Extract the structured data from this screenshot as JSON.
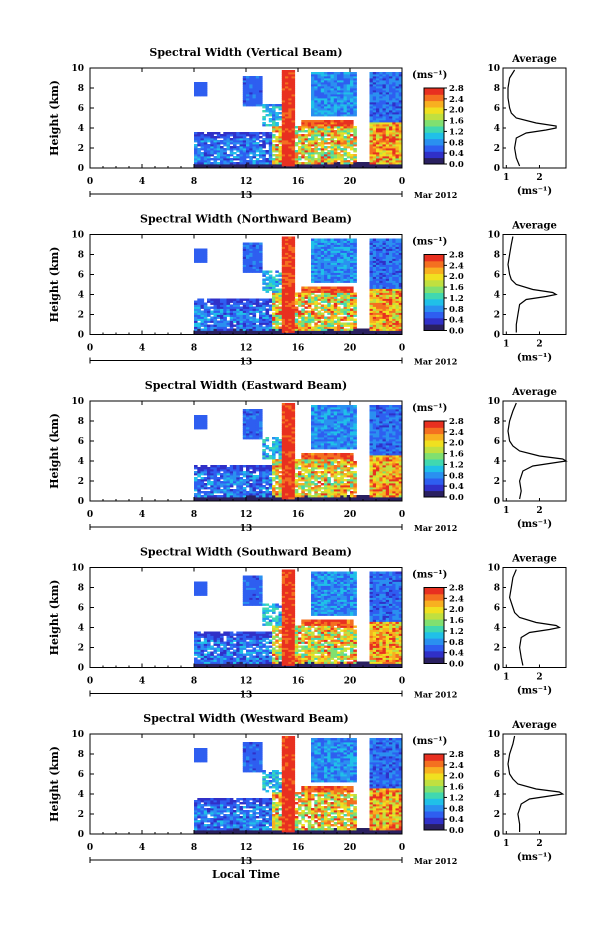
{
  "figure": {
    "xlabel": "Local Time",
    "date_label": "Mar 2012",
    "day_label": "13",
    "average_title": "Average",
    "height_label": "Height (km)",
    "unit_label": "(ms⁻¹)"
  },
  "colorscale": [
    "#2a2060",
    "#3030c8",
    "#2e5ef0",
    "#2a90f0",
    "#20c0e8",
    "#40d8b0",
    "#80e070",
    "#c0e040",
    "#f0e020",
    "#f8b020",
    "#f47020",
    "#e83020"
  ],
  "chart_data": [
    {
      "type": "heatmap",
      "title": "Spectral Width (Vertical Beam)",
      "ylabel": "Height (km)",
      "xlim": [
        0,
        24
      ],
      "ylim": [
        0,
        10
      ],
      "x_ticks": [
        "0",
        "4",
        "8",
        "12",
        "16",
        "20",
        "0"
      ],
      "y_ticks": [
        "0",
        "2",
        "4",
        "6",
        "8",
        "10"
      ],
      "colorbar": {
        "label": "(ms⁻¹)",
        "range": [
          0,
          2.8
        ],
        "ticks": [
          "0.0",
          "0.4",
          "0.8",
          "1.2",
          "1.6",
          "2.0",
          "2.4",
          "2.8"
        ]
      },
      "average_profile": {
        "title": "Average",
        "xlabel": "(ms⁻¹)",
        "x_ticks": [
          "1",
          "2"
        ],
        "height_km": [
          0.2,
          1.0,
          2.0,
          3.0,
          3.5,
          3.8,
          4.0,
          4.2,
          4.5,
          5.0,
          5.5,
          6.0,
          7.0,
          8.0,
          9.0,
          9.8
        ],
        "width_ms": [
          1.4,
          1.3,
          1.25,
          1.3,
          1.6,
          2.2,
          2.5,
          2.5,
          1.9,
          1.3,
          1.15,
          1.1,
          1.05,
          1.05,
          1.1,
          1.25
        ]
      }
    },
    {
      "type": "heatmap",
      "title": "Spectral Width (Northward Beam)",
      "ylabel": "Height (km)",
      "xlim": [
        0,
        24
      ],
      "ylim": [
        0,
        10
      ],
      "x_ticks": [
        "0",
        "4",
        "8",
        "12",
        "16",
        "20",
        "0"
      ],
      "y_ticks": [
        "0",
        "2",
        "4",
        "6",
        "8",
        "10"
      ],
      "colorbar": {
        "label": "(ms⁻¹)",
        "range": [
          0,
          2.8
        ],
        "ticks": [
          "0.0",
          "0.4",
          "0.8",
          "1.2",
          "1.6",
          "2.0",
          "2.4",
          "2.8"
        ]
      },
      "average_profile": {
        "title": "Average",
        "xlabel": "(ms⁻¹)",
        "x_ticks": [
          "1",
          "2"
        ],
        "height_km": [
          0.2,
          1.0,
          2.0,
          3.0,
          3.5,
          3.8,
          4.0,
          4.2,
          4.5,
          5.0,
          5.5,
          6.0,
          7.0,
          8.0,
          9.0,
          9.8
        ],
        "width_ms": [
          1.3,
          1.3,
          1.35,
          1.4,
          1.6,
          2.2,
          2.5,
          2.4,
          1.8,
          1.3,
          1.15,
          1.1,
          1.05,
          1.1,
          1.15,
          1.2
        ]
      }
    },
    {
      "type": "heatmap",
      "title": "Spectral Width (Eastward Beam)",
      "ylabel": "Height (km)",
      "xlim": [
        0,
        24
      ],
      "ylim": [
        0,
        10
      ],
      "x_ticks": [
        "0",
        "4",
        "8",
        "12",
        "16",
        "20",
        "0"
      ],
      "y_ticks": [
        "0",
        "2",
        "4",
        "6",
        "8",
        "10"
      ],
      "colorbar": {
        "label": "(ms⁻¹)",
        "range": [
          0,
          2.8
        ],
        "ticks": [
          "0.0",
          "0.4",
          "0.8",
          "1.2",
          "1.6",
          "2.0",
          "2.4",
          "2.8"
        ]
      },
      "average_profile": {
        "title": "Average",
        "xlabel": "(ms⁻¹)",
        "x_ticks": [
          "1",
          "2"
        ],
        "height_km": [
          0.2,
          1.0,
          2.0,
          3.0,
          3.5,
          3.8,
          4.0,
          4.2,
          4.5,
          5.0,
          5.5,
          6.0,
          7.0,
          8.0,
          9.0,
          9.8
        ],
        "width_ms": [
          1.4,
          1.45,
          1.4,
          1.5,
          1.8,
          2.4,
          2.8,
          2.7,
          2.0,
          1.4,
          1.2,
          1.1,
          1.05,
          1.1,
          1.2,
          1.3
        ]
      }
    },
    {
      "type": "heatmap",
      "title": "Spectral Width (Southward Beam)",
      "ylabel": "Height (km)",
      "xlim": [
        0,
        24
      ],
      "ylim": [
        0,
        10
      ],
      "x_ticks": [
        "0",
        "4",
        "8",
        "12",
        "16",
        "20",
        "0"
      ],
      "y_ticks": [
        "0",
        "2",
        "4",
        "6",
        "8",
        "10"
      ],
      "colorbar": {
        "label": "(ms⁻¹)",
        "range": [
          0,
          2.8
        ],
        "ticks": [
          "0.0",
          "0.4",
          "0.8",
          "1.2",
          "1.6",
          "2.0",
          "2.4",
          "2.8"
        ]
      },
      "average_profile": {
        "title": "Average",
        "xlabel": "(ms⁻¹)",
        "x_ticks": [
          "1",
          "2"
        ],
        "height_km": [
          0.2,
          1.0,
          2.0,
          3.0,
          3.5,
          3.8,
          4.0,
          4.2,
          4.5,
          5.0,
          5.5,
          6.0,
          7.0,
          8.0,
          9.0,
          9.8
        ],
        "width_ms": [
          1.5,
          1.45,
          1.4,
          1.45,
          1.7,
          2.3,
          2.6,
          2.5,
          1.9,
          1.4,
          1.25,
          1.2,
          1.1,
          1.15,
          1.2,
          1.3
        ]
      }
    },
    {
      "type": "heatmap",
      "title": "Spectral Width (Westward Beam)",
      "ylabel": "Height (km)",
      "xlim": [
        0,
        24
      ],
      "ylim": [
        0,
        10
      ],
      "x_ticks": [
        "0",
        "4",
        "8",
        "12",
        "16",
        "20",
        "0"
      ],
      "y_ticks": [
        "0",
        "2",
        "4",
        "6",
        "8",
        "10"
      ],
      "colorbar": {
        "label": "(ms⁻¹)",
        "range": [
          0,
          2.8
        ],
        "ticks": [
          "0.0",
          "0.4",
          "0.8",
          "1.2",
          "1.6",
          "2.0",
          "2.4",
          "2.8"
        ]
      },
      "average_profile": {
        "title": "Average",
        "xlabel": "(ms⁻¹)",
        "x_ticks": [
          "1",
          "2"
        ],
        "height_km": [
          0.2,
          1.0,
          2.0,
          3.0,
          3.5,
          3.8,
          4.0,
          4.2,
          4.5,
          5.0,
          5.5,
          6.0,
          7.0,
          8.0,
          9.0,
          9.8
        ],
        "width_ms": [
          1.4,
          1.4,
          1.35,
          1.45,
          1.7,
          2.3,
          2.7,
          2.6,
          1.9,
          1.35,
          1.2,
          1.1,
          1.05,
          1.1,
          1.2,
          1.25
        ]
      }
    }
  ]
}
